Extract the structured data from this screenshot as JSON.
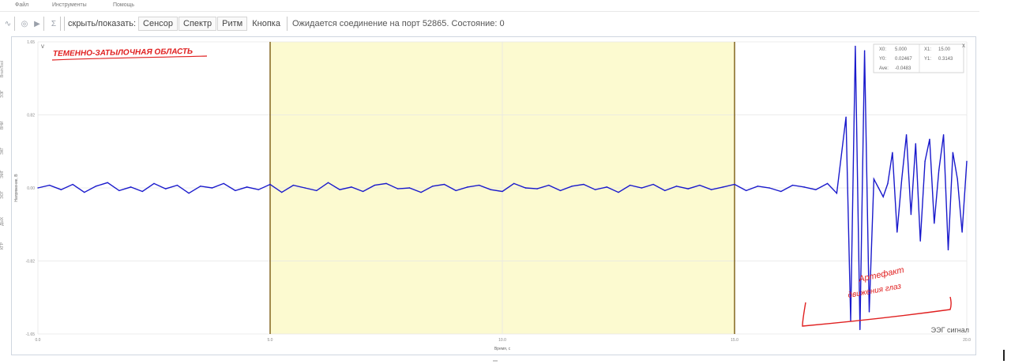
{
  "menu": {
    "items": [
      "Файл",
      "Инструменты",
      "Помощь"
    ]
  },
  "toolbar": {
    "show_hide_label": "скрыть/показать:",
    "buttons": [
      "Сенсор",
      "Спектр",
      "Ритм",
      "Кнопка"
    ],
    "status_text": "Ожидается соединение на порт 52865. Состояние: 0",
    "icons": [
      "wave-icon",
      "stop-icon",
      "play-icon",
      "sum-icon"
    ]
  },
  "sidebar": {
    "items": [
      "BrainTool",
      "ЭЭГ",
      "ВНИ",
      "ЭКГ",
      "ЭМГ",
      "ЭОГ",
      "ДЫХ",
      "КГР"
    ]
  },
  "chart_data": {
    "type": "line",
    "xlabel": "Время, с",
    "ylabel": "Напряжение, В",
    "x_ticks": [
      "0.0",
      "5.0",
      "10.0",
      "15.0",
      "20.0"
    ],
    "y_ticks": [
      "1.65",
      "0.82",
      "0.00",
      "-0.82",
      "-1.65"
    ],
    "xlim": [
      0,
      20
    ],
    "ylim": [
      -1.65,
      1.65
    ],
    "grid": true,
    "highlight_range": [
      5.0,
      15.0
    ],
    "legend": {
      "label": "ЭЭГ сигнал",
      "position": "bottom-right"
    },
    "series_color": "#1a1acc",
    "highlight_color": "#fcfad0",
    "annotation_color": "#e02020",
    "series": [
      {
        "name": "ЭЭГ сигнал",
        "x": [
          0.0,
          0.25,
          0.5,
          0.75,
          1.0,
          1.25,
          1.5,
          1.75,
          2.0,
          2.25,
          2.5,
          2.75,
          3.0,
          3.25,
          3.5,
          3.75,
          4.0,
          4.25,
          4.5,
          4.75,
          5.0,
          5.25,
          5.5,
          5.75,
          6.0,
          6.25,
          6.5,
          6.75,
          7.0,
          7.25,
          7.5,
          7.75,
          8.0,
          8.25,
          8.5,
          8.75,
          9.0,
          9.25,
          9.5,
          9.75,
          10.0,
          10.25,
          10.5,
          10.75,
          11.0,
          11.25,
          11.5,
          11.75,
          12.0,
          12.25,
          12.5,
          12.75,
          13.0,
          13.25,
          13.5,
          13.75,
          14.0,
          14.25,
          14.5,
          14.75,
          15.0,
          15.25,
          15.5,
          15.75,
          16.0,
          16.25,
          16.5,
          16.75,
          17.0,
          17.2,
          17.4,
          17.5,
          17.6,
          17.7,
          17.8,
          17.9,
          18.0,
          18.1,
          18.2,
          18.3,
          18.4,
          18.5,
          18.6,
          18.7,
          18.8,
          18.9,
          19.0,
          19.1,
          19.2,
          19.3,
          19.4,
          19.5,
          19.6,
          19.7,
          19.8,
          19.9,
          20.0
        ],
        "values": [
          0.0,
          0.03,
          -0.02,
          0.04,
          -0.05,
          0.02,
          0.06,
          -0.03,
          0.01,
          -0.04,
          0.05,
          -0.01,
          0.03,
          -0.06,
          0.02,
          0.0,
          0.05,
          -0.03,
          0.01,
          -0.02,
          0.04,
          -0.05,
          0.03,
          0.0,
          -0.03,
          0.06,
          -0.02,
          0.01,
          -0.04,
          0.03,
          0.05,
          -0.01,
          0.0,
          -0.05,
          0.02,
          0.04,
          -0.03,
          0.01,
          0.03,
          -0.02,
          -0.04,
          0.05,
          0.0,
          -0.01,
          0.03,
          -0.03,
          0.02,
          0.04,
          -0.02,
          0.01,
          -0.05,
          0.03,
          0.0,
          0.04,
          -0.03,
          0.02,
          -0.01,
          0.03,
          -0.02,
          0.01,
          0.04,
          -0.03,
          0.02,
          0.0,
          -0.04,
          0.03,
          0.01,
          -0.02,
          0.05,
          -0.06,
          0.8,
          -1.5,
          1.6,
          -1.6,
          1.55,
          -1.4,
          0.1,
          0.0,
          -0.1,
          0.05,
          0.4,
          -0.5,
          0.1,
          0.6,
          -0.3,
          0.5,
          -0.6,
          0.3,
          0.55,
          -0.4,
          0.2,
          0.6,
          -0.7,
          0.4,
          0.1,
          -0.5,
          0.3
        ]
      }
    ]
  },
  "cursor_panel": {
    "rows": [
      {
        "left_key": "X0:",
        "left_val": "5.000",
        "right_key": "X1:",
        "right_val": "15.00"
      },
      {
        "left_key": "Y0:",
        "left_val": "0.02467",
        "right_key": "Y1:",
        "right_val": "0.3143"
      },
      {
        "left_key": "Ave:",
        "left_val": "-0.0483",
        "right_key": "",
        "right_val": ""
      }
    ]
  },
  "annotations": {
    "top_left": "ТЕМЕННО-ЗАТЫЛОЧНАЯ ОБЛАСТЬ",
    "bottom_right_line1": "Артефакт",
    "bottom_right_line2": "движения глаз"
  },
  "corner_buttons": {
    "collapse": "v",
    "close": "x"
  }
}
